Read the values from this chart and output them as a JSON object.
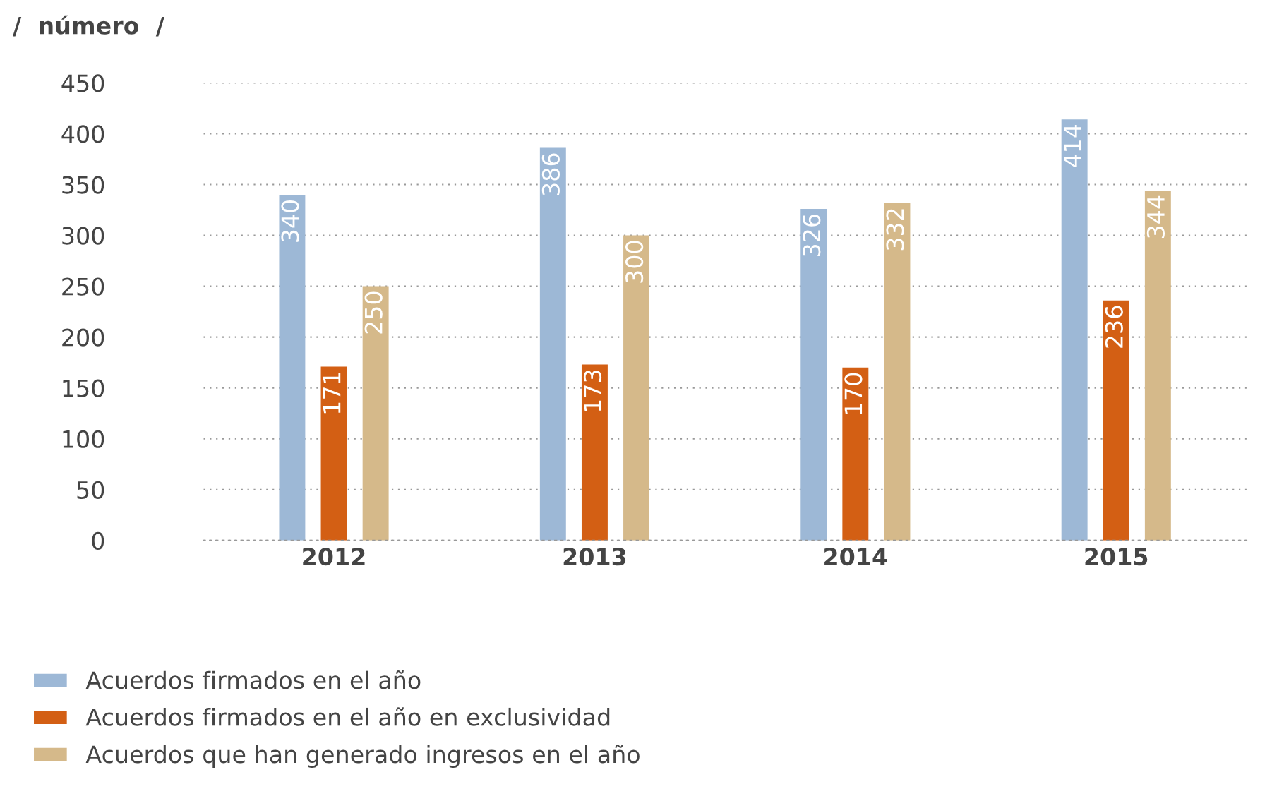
{
  "chart_data": {
    "type": "bar",
    "ylabel": "/  número  /",
    "categories": [
      "2012",
      "2013",
      "2014",
      "2015"
    ],
    "series": [
      {
        "name": "Acuerdos firmados en el año",
        "color": "#9db8d6",
        "values": [
          340,
          386,
          326,
          414
        ]
      },
      {
        "name": "Acuerdos firmados en el año en exclusividad",
        "color": "#d35f14",
        "values": [
          171,
          173,
          170,
          236
        ]
      },
      {
        "name": "Acuerdos que han generado ingresos en el año",
        "color": "#d5b98a",
        "values": [
          250,
          300,
          332,
          344
        ]
      }
    ],
    "ylim": [
      0,
      450
    ],
    "yticks": [
      0,
      50,
      100,
      150,
      200,
      250,
      300,
      350,
      400,
      450
    ],
    "grid": "y",
    "legend": "bottom left",
    "data_labels": true
  }
}
